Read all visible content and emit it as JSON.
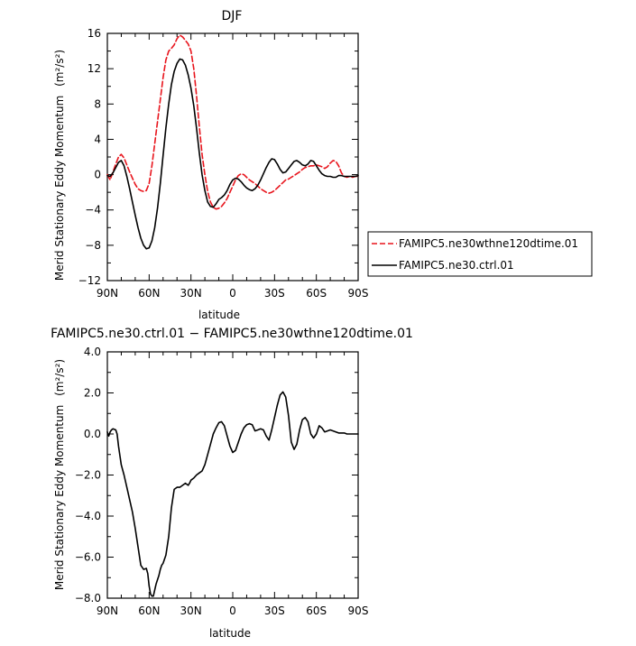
{
  "chart_data": [
    {
      "type": "line",
      "title": "DJF",
      "xlabel": "latitude",
      "ylabel": "Merid Stationary Eddy Momentum",
      "yunit": "(m²/s²)",
      "xlim": [
        90,
        -90
      ],
      "ylim": [
        -12,
        16
      ],
      "x_ticks": [
        90,
        60,
        30,
        0,
        -30,
        -60,
        -90
      ],
      "x_tick_labels": [
        "90N",
        "60N",
        "30N",
        "0",
        "30S",
        "60S",
        "90S"
      ],
      "y_ticks": [
        -12,
        -8,
        -4,
        0,
        4,
        8,
        12,
        16
      ],
      "y_tick_labels": [
        "−12",
        "−8",
        "−4",
        "0",
        "4",
        "8",
        "12",
        "16"
      ],
      "legend": "right",
      "series": [
        {
          "name": "FAMIPC5.ne30wthne120dtime.01",
          "color": "#e8141c",
          "style": "dashed",
          "x": [
            90,
            88,
            86,
            84,
            82,
            80,
            78,
            76,
            74,
            72,
            70,
            68,
            66,
            64,
            62,
            60,
            58,
            56,
            54,
            52,
            50,
            48,
            46,
            44,
            42,
            40,
            38,
            36,
            34,
            32,
            30,
            28,
            26,
            24,
            22,
            20,
            18,
            16,
            14,
            12,
            10,
            8,
            6,
            4,
            2,
            0,
            -2,
            -4,
            -6,
            -8,
            -10,
            -12,
            -14,
            -16,
            -18,
            -20,
            -22,
            -24,
            -26,
            -28,
            -30,
            -32,
            -34,
            -36,
            -38,
            -40,
            -42,
            -44,
            -46,
            -48,
            -50,
            -52,
            -54,
            -56,
            -58,
            -60,
            -62,
            -64,
            -66,
            -68,
            -70,
            -72,
            -74,
            -76,
            -78,
            -80,
            -82,
            -84,
            -86,
            -88,
            -90
          ],
          "y": [
            0.0,
            -0.6,
            0.3,
            1.2,
            2.0,
            2.3,
            1.9,
            1.1,
            0.3,
            -0.4,
            -1.1,
            -1.6,
            -1.8,
            -1.9,
            -1.8,
            -1.0,
            1.0,
            3.5,
            6.0,
            8.5,
            11.0,
            13.0,
            14.0,
            14.3,
            14.7,
            15.4,
            15.8,
            15.6,
            15.2,
            14.8,
            14.0,
            12.0,
            9.0,
            5.5,
            2.3,
            0.0,
            -1.9,
            -3.1,
            -3.7,
            -3.9,
            -3.8,
            -3.6,
            -3.2,
            -2.7,
            -2.0,
            -1.3,
            -0.6,
            -0.1,
            0.1,
            0.0,
            -0.3,
            -0.6,
            -0.8,
            -1.0,
            -1.3,
            -1.6,
            -1.8,
            -2.0,
            -2.1,
            -2.0,
            -1.8,
            -1.5,
            -1.2,
            -0.9,
            -0.6,
            -0.5,
            -0.3,
            -0.1,
            0.1,
            0.3,
            0.6,
            0.8,
            0.9,
            1.0,
            1.0,
            1.1,
            1.0,
            0.9,
            0.7,
            0.9,
            1.3,
            1.6,
            1.5,
            1.0,
            0.2,
            -0.2,
            -0.3,
            -0.2,
            -0.3,
            -0.2,
            -0.2
          ]
        },
        {
          "name": "FAMIPC5.ne30.ctrl.01",
          "color": "#000000",
          "style": "solid",
          "x": [
            90,
            88,
            86,
            84,
            82,
            80,
            78,
            76,
            74,
            72,
            70,
            68,
            66,
            64,
            62,
            60,
            58,
            56,
            54,
            52,
            50,
            48,
            46,
            44,
            42,
            40,
            38,
            36,
            34,
            32,
            30,
            28,
            26,
            24,
            22,
            20,
            18,
            16,
            14,
            12,
            10,
            8,
            6,
            4,
            2,
            0,
            -2,
            -4,
            -6,
            -8,
            -10,
            -12,
            -14,
            -16,
            -18,
            -20,
            -22,
            -24,
            -26,
            -28,
            -30,
            -32,
            -34,
            -36,
            -38,
            -40,
            -42,
            -44,
            -46,
            -48,
            -50,
            -52,
            -54,
            -56,
            -58,
            -60,
            -62,
            -64,
            -66,
            -68,
            -70,
            -72,
            -74,
            -76,
            -78,
            -80,
            -82,
            -84,
            -86,
            -88,
            -90
          ],
          "y": [
            -0.1,
            -0.2,
            0.2,
            0.8,
            1.4,
            1.6,
            1.0,
            -0.2,
            -1.6,
            -3.1,
            -4.6,
            -6.0,
            -7.2,
            -8.0,
            -8.4,
            -8.3,
            -7.5,
            -6.0,
            -3.8,
            -1.0,
            2.2,
            5.3,
            8.0,
            10.2,
            11.7,
            12.6,
            13.1,
            13.0,
            12.4,
            11.3,
            9.8,
            7.8,
            5.3,
            2.5,
            0.0,
            -1.8,
            -3.1,
            -3.6,
            -3.7,
            -3.3,
            -2.8,
            -2.6,
            -2.3,
            -1.8,
            -1.1,
            -0.6,
            -0.4,
            -0.5,
            -0.8,
            -1.2,
            -1.5,
            -1.7,
            -1.8,
            -1.6,
            -1.2,
            -0.6,
            0.1,
            0.8,
            1.4,
            1.8,
            1.7,
            1.2,
            0.6,
            0.2,
            0.3,
            0.7,
            1.1,
            1.5,
            1.6,
            1.4,
            1.1,
            1.0,
            1.2,
            1.6,
            1.5,
            1.0,
            0.5,
            0.1,
            -0.1,
            -0.2,
            -0.2,
            -0.3,
            -0.3,
            -0.1,
            -0.1,
            -0.2,
            -0.2,
            -0.2,
            -0.2,
            -0.2,
            -0.1
          ]
        }
      ]
    },
    {
      "type": "line",
      "title": "FAMIPC5.ne30.ctrl.01 − FAMIPC5.ne30wthne120dtime.01",
      "xlabel": "latitude",
      "ylabel": "Merid Stationary Eddy Momentum",
      "yunit": "(m²/s²)",
      "xlim": [
        90,
        -90
      ],
      "ylim": [
        -8,
        4
      ],
      "x_ticks": [
        90,
        60,
        30,
        0,
        -30,
        -60,
        -90
      ],
      "x_tick_labels": [
        "90N",
        "60N",
        "30N",
        "0",
        "30S",
        "60S",
        "90S"
      ],
      "y_ticks": [
        -8,
        -6,
        -4,
        -2,
        0,
        2,
        4
      ],
      "y_tick_labels": [
        "−8.0",
        "−6.0",
        "−4.0",
        "−2.0",
        "0.0",
        "2.0",
        "4.0"
      ],
      "series": [
        {
          "color": "#000000",
          "style": "solid",
          "x": [
            90,
            89,
            88,
            87,
            86,
            84,
            83,
            82,
            80,
            78,
            76,
            74,
            72,
            70,
            68,
            66,
            64,
            62,
            61,
            60,
            59,
            58,
            57,
            56,
            55,
            54,
            53,
            52,
            51,
            50,
            48,
            46,
            44,
            42,
            40,
            38,
            36,
            34,
            32,
            31,
            30,
            28,
            26,
            24,
            22,
            20,
            18,
            16,
            14,
            12,
            10,
            8,
            6,
            4,
            2,
            0,
            -2,
            -4,
            -6,
            -8,
            -10,
            -12,
            -14,
            -16,
            -18,
            -20,
            -22,
            -24,
            -26,
            -28,
            -30,
            -32,
            -34,
            -36,
            -38,
            -40,
            -42,
            -44,
            -46,
            -48,
            -50,
            -52,
            -54,
            -56,
            -58,
            -60,
            -62,
            -64,
            -66,
            -68,
            -70,
            -72,
            -74,
            -76,
            -78,
            -80,
            -82,
            -84,
            -86,
            -88,
            -90
          ],
          "y": [
            0.1,
            -0.1,
            0.1,
            0.2,
            0.25,
            0.2,
            0.0,
            -0.6,
            -1.5,
            -2.0,
            -2.6,
            -3.2,
            -3.8,
            -4.6,
            -5.5,
            -6.4,
            -6.6,
            -6.55,
            -6.8,
            -7.4,
            -7.8,
            -7.9,
            -7.9,
            -7.6,
            -7.3,
            -7.1,
            -6.9,
            -6.6,
            -6.4,
            -6.3,
            -5.9,
            -5.0,
            -3.6,
            -2.7,
            -2.6,
            -2.6,
            -2.5,
            -2.4,
            -2.5,
            -2.4,
            -2.25,
            -2.15,
            -2.0,
            -1.9,
            -1.8,
            -1.5,
            -1.0,
            -0.5,
            0.0,
            0.3,
            0.55,
            0.6,
            0.4,
            -0.1,
            -0.6,
            -0.9,
            -0.8,
            -0.4,
            0.0,
            0.3,
            0.45,
            0.5,
            0.45,
            0.15,
            0.2,
            0.25,
            0.2,
            -0.1,
            -0.3,
            0.2,
            0.8,
            1.4,
            1.9,
            2.05,
            1.8,
            0.9,
            -0.4,
            -0.75,
            -0.5,
            0.2,
            0.7,
            0.8,
            0.6,
            0.0,
            -0.2,
            0.0,
            0.4,
            0.3,
            0.1,
            0.15,
            0.2,
            0.15,
            0.1,
            0.05,
            0.05,
            0.05,
            0.0,
            0.0,
            0.0,
            0.0,
            0.0
          ]
        }
      ]
    }
  ]
}
